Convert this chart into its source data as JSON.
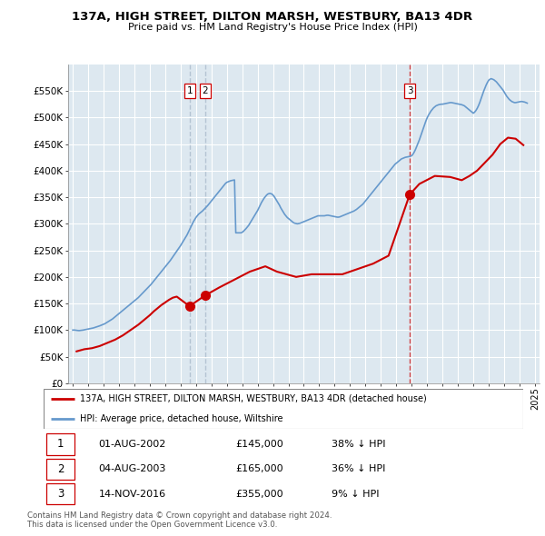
{
  "title": "137A, HIGH STREET, DILTON MARSH, WESTBURY, BA13 4DR",
  "subtitle": "Price paid vs. HM Land Registry's House Price Index (HPI)",
  "ylim": [
    0,
    600000
  ],
  "yticks": [
    0,
    50000,
    100000,
    150000,
    200000,
    250000,
    300000,
    350000,
    400000,
    450000,
    500000,
    550000
  ],
  "ytick_labels": [
    "£0",
    "£50K",
    "£100K",
    "£150K",
    "£200K",
    "£250K",
    "£300K",
    "£350K",
    "£400K",
    "£450K",
    "£500K",
    "£550K"
  ],
  "legend_line1": "137A, HIGH STREET, DILTON MARSH, WESTBURY, BA13 4DR (detached house)",
  "legend_line2": "HPI: Average price, detached house, Wiltshire",
  "footer1": "Contains HM Land Registry data © Crown copyright and database right 2024.",
  "footer2": "This data is licensed under the Open Government Licence v3.0.",
  "transactions": [
    {
      "num": 1,
      "date": "01-AUG-2002",
      "price": "£145,000",
      "pct": "38% ↓ HPI",
      "year": 2002.58
    },
    {
      "num": 2,
      "date": "04-AUG-2003",
      "price": "£165,000",
      "pct": "36% ↓ HPI",
      "year": 2003.58
    },
    {
      "num": 3,
      "date": "14-NOV-2016",
      "price": "£355,000",
      "pct": "9% ↓ HPI",
      "year": 2016.87
    }
  ],
  "transaction_prices": [
    145000,
    165000,
    355000
  ],
  "hpi_color": "#6699cc",
  "price_color": "#cc0000",
  "marker_color": "#cc0000",
  "vline_color_red": "#cc0000",
  "vline_color_blue": "#aabbcc",
  "chart_bg": "#dde8f0",
  "grid_color": "#ffffff",
  "hpi_x": [
    1995.0,
    1995.083,
    1995.167,
    1995.25,
    1995.333,
    1995.417,
    1995.5,
    1995.583,
    1995.667,
    1995.75,
    1995.833,
    1995.917,
    1996.0,
    1996.083,
    1996.167,
    1996.25,
    1996.333,
    1996.417,
    1996.5,
    1996.583,
    1996.667,
    1996.75,
    1996.833,
    1996.917,
    1997.0,
    1997.083,
    1997.167,
    1997.25,
    1997.333,
    1997.417,
    1997.5,
    1997.583,
    1997.667,
    1997.75,
    1997.833,
    1997.917,
    1998.0,
    1998.083,
    1998.167,
    1998.25,
    1998.333,
    1998.417,
    1998.5,
    1998.583,
    1998.667,
    1998.75,
    1998.833,
    1998.917,
    1999.0,
    1999.083,
    1999.167,
    1999.25,
    1999.333,
    1999.417,
    1999.5,
    1999.583,
    1999.667,
    1999.75,
    1999.833,
    1999.917,
    2000.0,
    2000.083,
    2000.167,
    2000.25,
    2000.333,
    2000.417,
    2000.5,
    2000.583,
    2000.667,
    2000.75,
    2000.833,
    2000.917,
    2001.0,
    2001.083,
    2001.167,
    2001.25,
    2001.333,
    2001.417,
    2001.5,
    2001.583,
    2001.667,
    2001.75,
    2001.833,
    2001.917,
    2002.0,
    2002.083,
    2002.167,
    2002.25,
    2002.333,
    2002.417,
    2002.5,
    2002.583,
    2002.667,
    2002.75,
    2002.833,
    2002.917,
    2003.0,
    2003.083,
    2003.167,
    2003.25,
    2003.333,
    2003.417,
    2003.5,
    2003.583,
    2003.667,
    2003.75,
    2003.833,
    2003.917,
    2004.0,
    2004.083,
    2004.167,
    2004.25,
    2004.333,
    2004.417,
    2004.5,
    2004.583,
    2004.667,
    2004.75,
    2004.833,
    2004.917,
    2005.0,
    2005.083,
    2005.167,
    2005.25,
    2005.333,
    2005.417,
    2005.5,
    2005.583,
    2005.667,
    2005.75,
    2005.833,
    2005.917,
    2006.0,
    2006.083,
    2006.167,
    2006.25,
    2006.333,
    2006.417,
    2006.5,
    2006.583,
    2006.667,
    2006.75,
    2006.833,
    2006.917,
    2007.0,
    2007.083,
    2007.167,
    2007.25,
    2007.333,
    2007.417,
    2007.5,
    2007.583,
    2007.667,
    2007.75,
    2007.833,
    2007.917,
    2008.0,
    2008.083,
    2008.167,
    2008.25,
    2008.333,
    2008.417,
    2008.5,
    2008.583,
    2008.667,
    2008.75,
    2008.833,
    2008.917,
    2009.0,
    2009.083,
    2009.167,
    2009.25,
    2009.333,
    2009.417,
    2009.5,
    2009.583,
    2009.667,
    2009.75,
    2009.833,
    2009.917,
    2010.0,
    2010.083,
    2010.167,
    2010.25,
    2010.333,
    2010.417,
    2010.5,
    2010.583,
    2010.667,
    2010.75,
    2010.833,
    2010.917,
    2011.0,
    2011.083,
    2011.167,
    2011.25,
    2011.333,
    2011.417,
    2011.5,
    2011.583,
    2011.667,
    2011.75,
    2011.833,
    2011.917,
    2012.0,
    2012.083,
    2012.167,
    2012.25,
    2012.333,
    2012.417,
    2012.5,
    2012.583,
    2012.667,
    2012.75,
    2012.833,
    2012.917,
    2013.0,
    2013.083,
    2013.167,
    2013.25,
    2013.333,
    2013.417,
    2013.5,
    2013.583,
    2013.667,
    2013.75,
    2013.833,
    2013.917,
    2014.0,
    2014.083,
    2014.167,
    2014.25,
    2014.333,
    2014.417,
    2014.5,
    2014.583,
    2014.667,
    2014.75,
    2014.833,
    2014.917,
    2015.0,
    2015.083,
    2015.167,
    2015.25,
    2015.333,
    2015.417,
    2015.5,
    2015.583,
    2015.667,
    2015.75,
    2015.833,
    2015.917,
    2016.0,
    2016.083,
    2016.167,
    2016.25,
    2016.333,
    2016.417,
    2016.5,
    2016.583,
    2016.667,
    2016.75,
    2016.833,
    2016.917,
    2017.0,
    2017.083,
    2017.167,
    2017.25,
    2017.333,
    2017.417,
    2017.5,
    2017.583,
    2017.667,
    2017.75,
    2017.833,
    2017.917,
    2018.0,
    2018.083,
    2018.167,
    2018.25,
    2018.333,
    2018.417,
    2018.5,
    2018.583,
    2018.667,
    2018.75,
    2018.833,
    2018.917,
    2019.0,
    2019.083,
    2019.167,
    2019.25,
    2019.333,
    2019.417,
    2019.5,
    2019.583,
    2019.667,
    2019.75,
    2019.833,
    2019.917,
    2020.0,
    2020.083,
    2020.167,
    2020.25,
    2020.333,
    2020.417,
    2020.5,
    2020.583,
    2020.667,
    2020.75,
    2020.833,
    2020.917,
    2021.0,
    2021.083,
    2021.167,
    2021.25,
    2021.333,
    2021.417,
    2021.5,
    2021.583,
    2021.667,
    2021.75,
    2021.833,
    2021.917,
    2022.0,
    2022.083,
    2022.167,
    2022.25,
    2022.333,
    2022.417,
    2022.5,
    2022.583,
    2022.667,
    2022.75,
    2022.833,
    2022.917,
    2023.0,
    2023.083,
    2023.167,
    2023.25,
    2023.333,
    2023.417,
    2023.5,
    2023.583,
    2023.667,
    2023.75,
    2023.833,
    2023.917,
    2024.0,
    2024.083,
    2024.167,
    2024.25,
    2024.333,
    2024.417,
    2024.5
  ],
  "hpi_y": [
    100000,
    100200,
    99800,
    99500,
    99200,
    99000,
    99300,
    99600,
    100000,
    100500,
    101000,
    101500,
    102000,
    102500,
    103000,
    103500,
    104000,
    104800,
    105500,
    106200,
    107000,
    108000,
    109000,
    110000,
    111000,
    112000,
    113500,
    115000,
    116500,
    118000,
    119500,
    121000,
    123000,
    125000,
    127000,
    129000,
    131000,
    133000,
    135000,
    137000,
    139000,
    141000,
    143000,
    145000,
    147000,
    149000,
    151000,
    153000,
    155000,
    157000,
    159000,
    161000,
    163500,
    166000,
    168500,
    171000,
    173500,
    176000,
    178500,
    181000,
    183500,
    186000,
    189000,
    192000,
    195000,
    198000,
    201000,
    204000,
    207000,
    210000,
    213000,
    216000,
    219000,
    222000,
    225000,
    228000,
    231000,
    234500,
    238000,
    241500,
    245000,
    248500,
    252000,
    255500,
    259000,
    263000,
    267000,
    271000,
    275000,
    279000,
    284000,
    289000,
    294000,
    299000,
    304000,
    308000,
    312000,
    315000,
    318000,
    320000,
    322000,
    324000,
    326500,
    329000,
    331500,
    334000,
    337000,
    340000,
    343000,
    346000,
    349000,
    352000,
    355000,
    358000,
    361000,
    364000,
    367000,
    370000,
    373000,
    376000,
    378000,
    379000,
    380000,
    381000,
    381500,
    382000,
    382500,
    283000,
    283000,
    283000,
    283000,
    283000,
    284000,
    286000,
    288500,
    291000,
    294000,
    297000,
    301000,
    305000,
    309000,
    313000,
    317000,
    321000,
    325000,
    330000,
    335000,
    340000,
    344000,
    348000,
    351000,
    354000,
    356000,
    357000,
    357000,
    356000,
    354000,
    351000,
    347000,
    343000,
    339000,
    335000,
    330000,
    326000,
    322000,
    318000,
    315000,
    312000,
    310000,
    308000,
    306000,
    304000,
    302000,
    301000,
    300500,
    300000,
    300500,
    301000,
    302000,
    303000,
    304000,
    305000,
    306000,
    307000,
    308000,
    309000,
    310000,
    311000,
    312000,
    313000,
    314000,
    315000,
    315000,
    315000,
    315000,
    315000,
    315000,
    315500,
    316000,
    316000,
    315500,
    315000,
    314500,
    314000,
    313500,
    313000,
    312500,
    312500,
    313000,
    314000,
    315000,
    316000,
    317000,
    318000,
    319000,
    320000,
    321000,
    322000,
    323000,
    324000,
    325500,
    327000,
    329000,
    331000,
    333000,
    335000,
    337000,
    340000,
    343000,
    346000,
    349000,
    352000,
    355000,
    358000,
    361000,
    364000,
    367000,
    370000,
    373000,
    376000,
    379000,
    382000,
    385000,
    388000,
    391000,
    394000,
    397000,
    400000,
    403000,
    406000,
    409000,
    412000,
    414000,
    416000,
    418000,
    420000,
    422000,
    423000,
    424000,
    425000,
    425500,
    426000,
    426500,
    427000,
    428000,
    431000,
    435000,
    440000,
    446000,
    452000,
    458000,
    465000,
    472000,
    479000,
    486000,
    493000,
    499000,
    504000,
    508000,
    512000,
    515000,
    518000,
    520000,
    522000,
    523000,
    524000,
    524500,
    525000,
    525000,
    525500,
    526000,
    526500,
    527000,
    527500,
    528000,
    528000,
    527500,
    527000,
    526500,
    526000,
    525500,
    525000,
    524500,
    524000,
    523000,
    522000,
    520000,
    518000,
    516000,
    514000,
    512000,
    510000,
    508000,
    510000,
    513000,
    517000,
    522000,
    528000,
    535000,
    542000,
    549000,
    555000,
    561000,
    566000,
    570000,
    572000,
    573000,
    572000,
    571000,
    569000,
    567000,
    564000,
    561000,
    558000,
    555000,
    552000,
    548000,
    544000,
    540000,
    537000,
    534000,
    532000,
    530000,
    529000,
    528000,
    528000,
    528500,
    529000,
    529500,
    530000,
    530000,
    529500,
    529000,
    528000,
    527000
  ],
  "price_x": [
    1995.25,
    1995.5,
    1995.75,
    1996.0,
    1996.25,
    1996.5,
    1996.75,
    1997.0,
    1997.25,
    1997.5,
    1997.75,
    1998.0,
    1998.25,
    1998.5,
    1998.75,
    1999.0,
    1999.25,
    1999.5,
    1999.75,
    2000.0,
    2000.25,
    2000.5,
    2000.75,
    2001.0,
    2001.25,
    2001.5,
    2001.75,
    2002.58,
    2003.58,
    2004.5,
    2005.5,
    2006.5,
    2007.5,
    2008.25,
    2009.5,
    2010.5,
    2011.5,
    2012.5,
    2013.5,
    2014.5,
    2015.5,
    2016.87,
    2017.5,
    2018.5,
    2019.5,
    2020.25,
    2020.75,
    2021.25,
    2021.75,
    2022.25,
    2022.75,
    2023.25,
    2023.75,
    2024.25
  ],
  "price_y": [
    60000,
    62000,
    64000,
    65000,
    66000,
    68000,
    70000,
    73000,
    76000,
    79000,
    82000,
    86000,
    90000,
    95000,
    100000,
    105000,
    110000,
    116000,
    122000,
    128000,
    135000,
    141000,
    147000,
    152000,
    157000,
    161000,
    163000,
    145000,
    165000,
    180000,
    195000,
    210000,
    220000,
    210000,
    200000,
    205000,
    205000,
    205000,
    215000,
    225000,
    240000,
    355000,
    375000,
    390000,
    388000,
    382000,
    390000,
    400000,
    415000,
    430000,
    450000,
    462000,
    460000,
    448000
  ]
}
